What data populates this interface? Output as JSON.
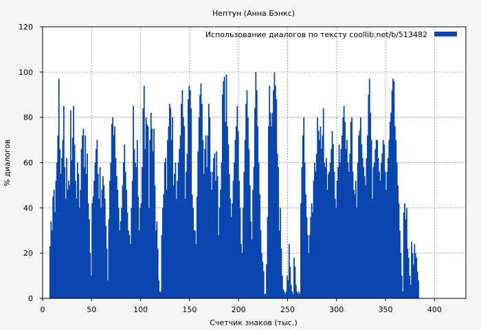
{
  "chart_data": {
    "type": "bar",
    "title": "Нептун (Анна Бэнкс)",
    "xlabel": "Счетчик знаков (тыс.)",
    "ylabel": "% диалогов",
    "xlim": [
      0,
      432
    ],
    "ylim": [
      0,
      120
    ],
    "xticks": [
      0,
      50,
      100,
      150,
      200,
      250,
      300,
      350,
      400
    ],
    "yticks": [
      0,
      20,
      40,
      60,
      80,
      100,
      120
    ],
    "grid": true,
    "legend_position": "top-right",
    "bar_color": "#0a46b0",
    "series": [
      {
        "name": "Использование диалогов по тексту  coollib.net/b/513482",
        "x_start": 7,
        "x_step": 1,
        "values": [
          23,
          34,
          30,
          45,
          48,
          38,
          52,
          60,
          72,
          97,
          66,
          55,
          62,
          70,
          85,
          58,
          44,
          62,
          48,
          52,
          50,
          83,
          61,
          71,
          85,
          68,
          52,
          44,
          60,
          55,
          40,
          48,
          66,
          72,
          75,
          58,
          72,
          55,
          64,
          42,
          35,
          20,
          10,
          42,
          45,
          52,
          60,
          66,
          70,
          55,
          44,
          58,
          40,
          48,
          54,
          50,
          44,
          32,
          22,
          8,
          35,
          52,
          60,
          77,
          80,
          72,
          76,
          62,
          54,
          48,
          40,
          30,
          34,
          40,
          50,
          60,
          68,
          56,
          48,
          38,
          30,
          28,
          24,
          40,
          52,
          85,
          66,
          60,
          58,
          70,
          45,
          30,
          40,
          42,
          58,
          84,
          94,
          66,
          80,
          77,
          76,
          40,
          70,
          82,
          75,
          65,
          75,
          50,
          30,
          34,
          22,
          8,
          3,
          3,
          28,
          40,
          46,
          60,
          62,
          48,
          70,
          76,
          86,
          84,
          70,
          80,
          50,
          55,
          60,
          44,
          52,
          60,
          66,
          72,
          86,
          92,
          80,
          76,
          44,
          56,
          64,
          88,
          94,
          92,
          84,
          46,
          40,
          30,
          30,
          24,
          45,
          65,
          80,
          90,
          95,
          86,
          70,
          55,
          66,
          72,
          58,
          72,
          86,
          80,
          56,
          48,
          56,
          62,
          64,
          52,
          65,
          54,
          28,
          40,
          48,
          60,
          90,
          96,
          98,
          78,
          99,
          76,
          68,
          55,
          44,
          36,
          42,
          52,
          60,
          70,
          76,
          85,
          74,
          52,
          40,
          24,
          20,
          40,
          56,
          70,
          86,
          92,
          80,
          66,
          50,
          34,
          26,
          48,
          58,
          84,
          100,
          92,
          76,
          60,
          46,
          30,
          20,
          16,
          12,
          2,
          2,
          15,
          36,
          76,
          94,
          82,
          76,
          82,
          92,
          100,
          94,
          88,
          64,
          58,
          30,
          40,
          22,
          10,
          4,
          3,
          2,
          3,
          10,
          8,
          24,
          14,
          6,
          3,
          2,
          18,
          14,
          6,
          3,
          2,
          3,
          2,
          42,
          58,
          72,
          80,
          60,
          46,
          36,
          28,
          20,
          28,
          36,
          42,
          38,
          52,
          60,
          56,
          64,
          80,
          74,
          70,
          76,
          66,
          72,
          84,
          60,
          58,
          62,
          48,
          55,
          56,
          60,
          66,
          74,
          68,
          56,
          44,
          40,
          52,
          58,
          68,
          60,
          66,
          72,
          80,
          85,
          78,
          66,
          70,
          60,
          56,
          64,
          78,
          80,
          56,
          48,
          46,
          52,
          40,
          60,
          72,
          74,
          80,
          68,
          62,
          58,
          54,
          50,
          62,
          72,
          90,
          97,
          82,
          70,
          44,
          58,
          60,
          66,
          70,
          70,
          62,
          56,
          52,
          60,
          64,
          70,
          68,
          56,
          48,
          56,
          62,
          70,
          78,
          82,
          92,
          97,
          96,
          76,
          70,
          60,
          50,
          42,
          30,
          20,
          10,
          3,
          38,
          42,
          35,
          40,
          22,
          18,
          10,
          6,
          25,
          20,
          15,
          24,
          20,
          18,
          12,
          8
        ]
      }
    ]
  }
}
